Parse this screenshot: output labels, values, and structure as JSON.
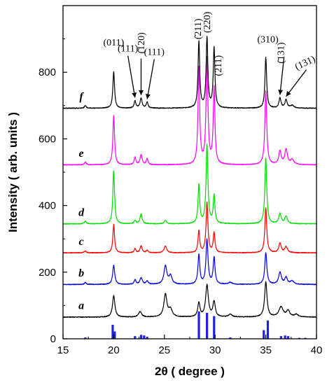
{
  "chart_data": {
    "type": "line",
    "title": "",
    "xlabel": "2θ ( degree )",
    "ylabel": "Intensity ( arb. units )",
    "xlim": [
      15,
      40
    ],
    "ylim": [
      0,
      1000
    ],
    "xticks": [
      "15",
      "20",
      "25",
      "30",
      "35",
      "40"
    ],
    "yticks": [
      "0",
      "200",
      "400",
      "600",
      "800"
    ],
    "xtick_values": [
      15,
      20,
      25,
      30,
      35,
      40
    ],
    "ytick_values": [
      0,
      200,
      400,
      600,
      800
    ],
    "grid": false,
    "series": [
      {
        "name": "a",
        "color": "#000000",
        "offset": 65,
        "peaks": [
          [
            20.0,
            65,
            0.14
          ],
          [
            22.6,
            16,
            0.18
          ],
          [
            25.1,
            68,
            0.18
          ],
          [
            25.6,
            22,
            0.2
          ],
          [
            28.4,
            42,
            0.13
          ],
          [
            29.2,
            95,
            0.16
          ],
          [
            29.9,
            45,
            0.14
          ],
          [
            31.5,
            8,
            0.2
          ],
          [
            35.0,
            105,
            0.14
          ],
          [
            36.5,
            30,
            0.25
          ],
          [
            37.2,
            18,
            0.2
          ],
          [
            38.0,
            8,
            0.2
          ]
        ]
      },
      {
        "name": "b",
        "color": "#0000ee",
        "offset": 163,
        "peaks": [
          [
            17.2,
            6,
            0.1
          ],
          [
            20.0,
            58,
            0.12
          ],
          [
            22.1,
            14,
            0.1
          ],
          [
            22.7,
            20,
            0.14
          ],
          [
            23.3,
            10,
            0.12
          ],
          [
            25.1,
            55,
            0.17
          ],
          [
            25.6,
            25,
            0.18
          ],
          [
            28.4,
            88,
            0.11
          ],
          [
            29.2,
            133,
            0.12
          ],
          [
            29.9,
            80,
            0.11
          ],
          [
            31.5,
            6,
            0.2
          ],
          [
            35.0,
            95,
            0.12
          ],
          [
            36.4,
            36,
            0.16
          ],
          [
            37.0,
            20,
            0.16
          ],
          [
            37.6,
            10,
            0.2
          ]
        ]
      },
      {
        "name": "c",
        "color": "#ff0000",
        "offset": 258,
        "peaks": [
          [
            17.2,
            6,
            0.1
          ],
          [
            20.0,
            85,
            0.1
          ],
          [
            22.1,
            12,
            0.1
          ],
          [
            22.7,
            20,
            0.12
          ],
          [
            23.3,
            8,
            0.1
          ],
          [
            25.1,
            20,
            0.15
          ],
          [
            28.4,
            65,
            0.1
          ],
          [
            29.2,
            150,
            0.11
          ],
          [
            29.9,
            60,
            0.1
          ],
          [
            35.0,
            135,
            0.11
          ],
          [
            36.4,
            28,
            0.14
          ],
          [
            37.0,
            18,
            0.16
          ]
        ]
      },
      {
        "name": "d",
        "color": "#00dd00",
        "offset": 345,
        "peaks": [
          [
            17.2,
            8,
            0.1
          ],
          [
            20.0,
            160,
            0.1
          ],
          [
            22.1,
            10,
            0.1
          ],
          [
            22.7,
            30,
            0.12
          ],
          [
            25.1,
            10,
            0.12
          ],
          [
            28.4,
            115,
            0.1
          ],
          [
            29.2,
            237,
            0.11
          ],
          [
            29.9,
            85,
            0.1
          ],
          [
            35.0,
            198,
            0.11
          ],
          [
            36.4,
            30,
            0.14
          ],
          [
            37.0,
            22,
            0.15
          ]
        ]
      },
      {
        "name": "e",
        "color": "#ff00ff",
        "offset": 522,
        "peaks": [
          [
            17.2,
            8,
            0.1
          ],
          [
            20.0,
            147,
            0.1
          ],
          [
            22.1,
            22,
            0.1
          ],
          [
            22.7,
            30,
            0.12
          ],
          [
            23.3,
            18,
            0.1
          ],
          [
            28.4,
            290,
            0.1
          ],
          [
            29.2,
            316,
            0.11
          ],
          [
            29.9,
            230,
            0.1
          ],
          [
            35.0,
            222,
            0.11
          ],
          [
            36.4,
            40,
            0.14
          ],
          [
            37.0,
            45,
            0.15
          ],
          [
            37.6,
            15,
            0.2
          ]
        ]
      },
      {
        "name": "f",
        "color": "#000000",
        "offset": 692,
        "peaks": [
          [
            17.2,
            8,
            0.1
          ],
          [
            20.0,
            110,
            0.1
          ],
          [
            22.1,
            22,
            0.1
          ],
          [
            22.7,
            30,
            0.12
          ],
          [
            23.3,
            18,
            0.1
          ],
          [
            28.4,
            198,
            0.1
          ],
          [
            29.2,
            210,
            0.1
          ],
          [
            29.9,
            180,
            0.1
          ],
          [
            35.0,
            152,
            0.1
          ],
          [
            36.4,
            30,
            0.12
          ],
          [
            37.0,
            25,
            0.13
          ],
          [
            37.6,
            8,
            0.2
          ]
        ]
      }
    ],
    "reference_pattern": {
      "color": "#1f1fe6",
      "lines": [
        [
          17.2,
          4
        ],
        [
          19.9,
          42
        ],
        [
          20.1,
          22
        ],
        [
          22.1,
          8
        ],
        [
          22.7,
          12
        ],
        [
          23.0,
          10
        ],
        [
          23.3,
          6
        ],
        [
          28.4,
          82
        ],
        [
          29.2,
          78
        ],
        [
          29.9,
          68
        ],
        [
          31.5,
          4
        ],
        [
          34.8,
          26
        ],
        [
          35.2,
          55
        ],
        [
          36.5,
          8
        ],
        [
          36.9,
          10
        ],
        [
          37.2,
          8
        ],
        [
          38.3,
          3
        ],
        [
          38.9,
          3
        ]
      ]
    },
    "peak_annotations": [
      {
        "label": "(011)",
        "x": 20.0,
        "arrow": false
      },
      {
        "label": "(̄111)",
        "x": 22.1,
        "arrow": true
      },
      {
        "label": "(̄120)",
        "x": 22.7,
        "arrow": true
      },
      {
        "label": "(111)",
        "x": 23.3,
        "arrow": true
      },
      {
        "label": "(̄211)",
        "x": 28.4,
        "arrow": false
      },
      {
        "label": "(220)",
        "x": 29.2,
        "arrow": false
      },
      {
        "label": "(211)",
        "x": 29.9,
        "arrow": false
      },
      {
        "label": "(310)",
        "x": 35.0,
        "arrow": false
      },
      {
        "label": "(̄131)",
        "x": 36.4,
        "arrow": true
      },
      {
        "label": "(131)",
        "x": 37.0,
        "arrow": true
      }
    ]
  }
}
